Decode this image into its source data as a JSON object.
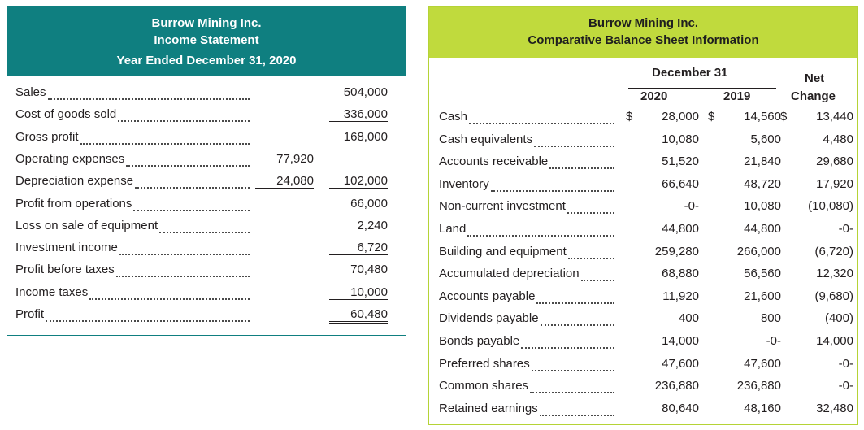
{
  "income_statement": {
    "title": [
      "Burrow Mining Inc.",
      "Income Statement",
      "Year Ended December 31, 2020"
    ],
    "rows": [
      {
        "label": "Sales",
        "col1": "",
        "col2": "504,000"
      },
      {
        "label": "Cost of goods sold",
        "col1": "",
        "col2": "336,000"
      },
      {
        "label": "Gross profit",
        "col1": "",
        "col2": "168,000"
      },
      {
        "label": "Operating expenses",
        "col1": "77,920",
        "col2": ""
      },
      {
        "label": "Depreciation expense",
        "col1": "24,080",
        "col2": "102,000"
      },
      {
        "label": "Profit from operations",
        "col1": "",
        "col2": "66,000"
      },
      {
        "label": "Loss on sale of equipment",
        "col1": "",
        "col2": "2,240"
      },
      {
        "label": "Investment income",
        "col1": "",
        "col2": "6,720"
      },
      {
        "label": "Profit before taxes",
        "col1": "",
        "col2": "70,480"
      },
      {
        "label": "Income taxes",
        "col1": "",
        "col2": "10,000"
      },
      {
        "label": "Profit",
        "col1": "",
        "col2": "60,480"
      }
    ]
  },
  "balance_sheet": {
    "title": [
      "Burrow Mining Inc.",
      "Comparative Balance Sheet Information"
    ],
    "group_header": "December 31",
    "columns": [
      "2020",
      "2019",
      "Net",
      "Change"
    ],
    "rows": [
      {
        "label": "Cash",
        "c2020": "28,000",
        "c2019": "14,560",
        "change": "13,440",
        "currency": "$"
      },
      {
        "label": "Cash equivalents",
        "c2020": "10,080",
        "c2019": "5,600",
        "change": "4,480"
      },
      {
        "label": "Accounts receivable",
        "c2020": "51,520",
        "c2019": "21,840",
        "change": "29,680"
      },
      {
        "label": "Inventory",
        "c2020": "66,640",
        "c2019": "48,720",
        "change": "17,920"
      },
      {
        "label": "Non-current investment",
        "c2020": "-0-",
        "c2019": "10,080",
        "change": "(10,080)"
      },
      {
        "label": "Land",
        "c2020": "44,800",
        "c2019": "44,800",
        "change": "-0-"
      },
      {
        "label": "Building and equipment",
        "c2020": "259,280",
        "c2019": "266,000",
        "change": "(6,720)"
      },
      {
        "label": "Accumulated depreciation",
        "c2020": "68,880",
        "c2019": "56,560",
        "change": "12,320"
      },
      {
        "label": "Accounts payable",
        "c2020": "11,920",
        "c2019": "21,600",
        "change": "(9,680)"
      },
      {
        "label": "Dividends payable",
        "c2020": "400",
        "c2019": "800",
        "change": "(400)"
      },
      {
        "label": "Bonds payable",
        "c2020": "14,000",
        "c2019": "-0-",
        "change": "14,000"
      },
      {
        "label": "Preferred shares",
        "c2020": "47,600",
        "c2019": "47,600",
        "change": "-0-"
      },
      {
        "label": "Common shares",
        "c2020": "236,880",
        "c2019": "236,880",
        "change": "-0-"
      },
      {
        "label": "Retained earnings",
        "c2020": "80,640",
        "c2019": "48,160",
        "change": "32,480"
      }
    ]
  }
}
